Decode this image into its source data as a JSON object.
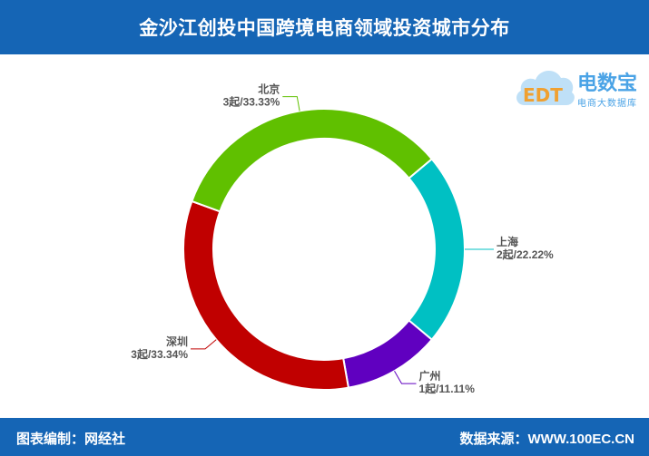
{
  "header": {
    "title": "金沙江创投中国跨境电商领域投资城市分布"
  },
  "logo": {
    "icon": "cloud-edt-logo",
    "text": "EDT",
    "brand": "电数宝",
    "subtitle": "电商大数据库"
  },
  "footer": {
    "credit": "图表编制：网经社",
    "source": "数据来源：WWW.100EC.CN"
  },
  "colors": {
    "header_bg": "#1565b5",
    "shanghai": "#00c0c3",
    "guangzhou": "#6000c0",
    "shenzhen": "#c00000",
    "beijing": "#60c000"
  },
  "chart_data": {
    "type": "pie",
    "variant": "donut",
    "title": "金沙江创投中国跨境电商领域投资城市分布",
    "slices": [
      {
        "name": "上海",
        "value": 2,
        "percent": 22.22,
        "label": "2起/22.22%",
        "color": "#00c0c3"
      },
      {
        "name": "广州",
        "value": 1,
        "percent": 11.11,
        "label": "1起/11.11%",
        "color": "#6000c0"
      },
      {
        "name": "深圳",
        "value": 3,
        "percent": 33.34,
        "label": "3起/33.34%",
        "color": "#c00000"
      },
      {
        "name": "北京",
        "value": 3,
        "percent": 33.33,
        "label": "3起/33.33%",
        "color": "#60c000"
      }
    ],
    "start_angle_deg": -40,
    "legend": "none"
  }
}
